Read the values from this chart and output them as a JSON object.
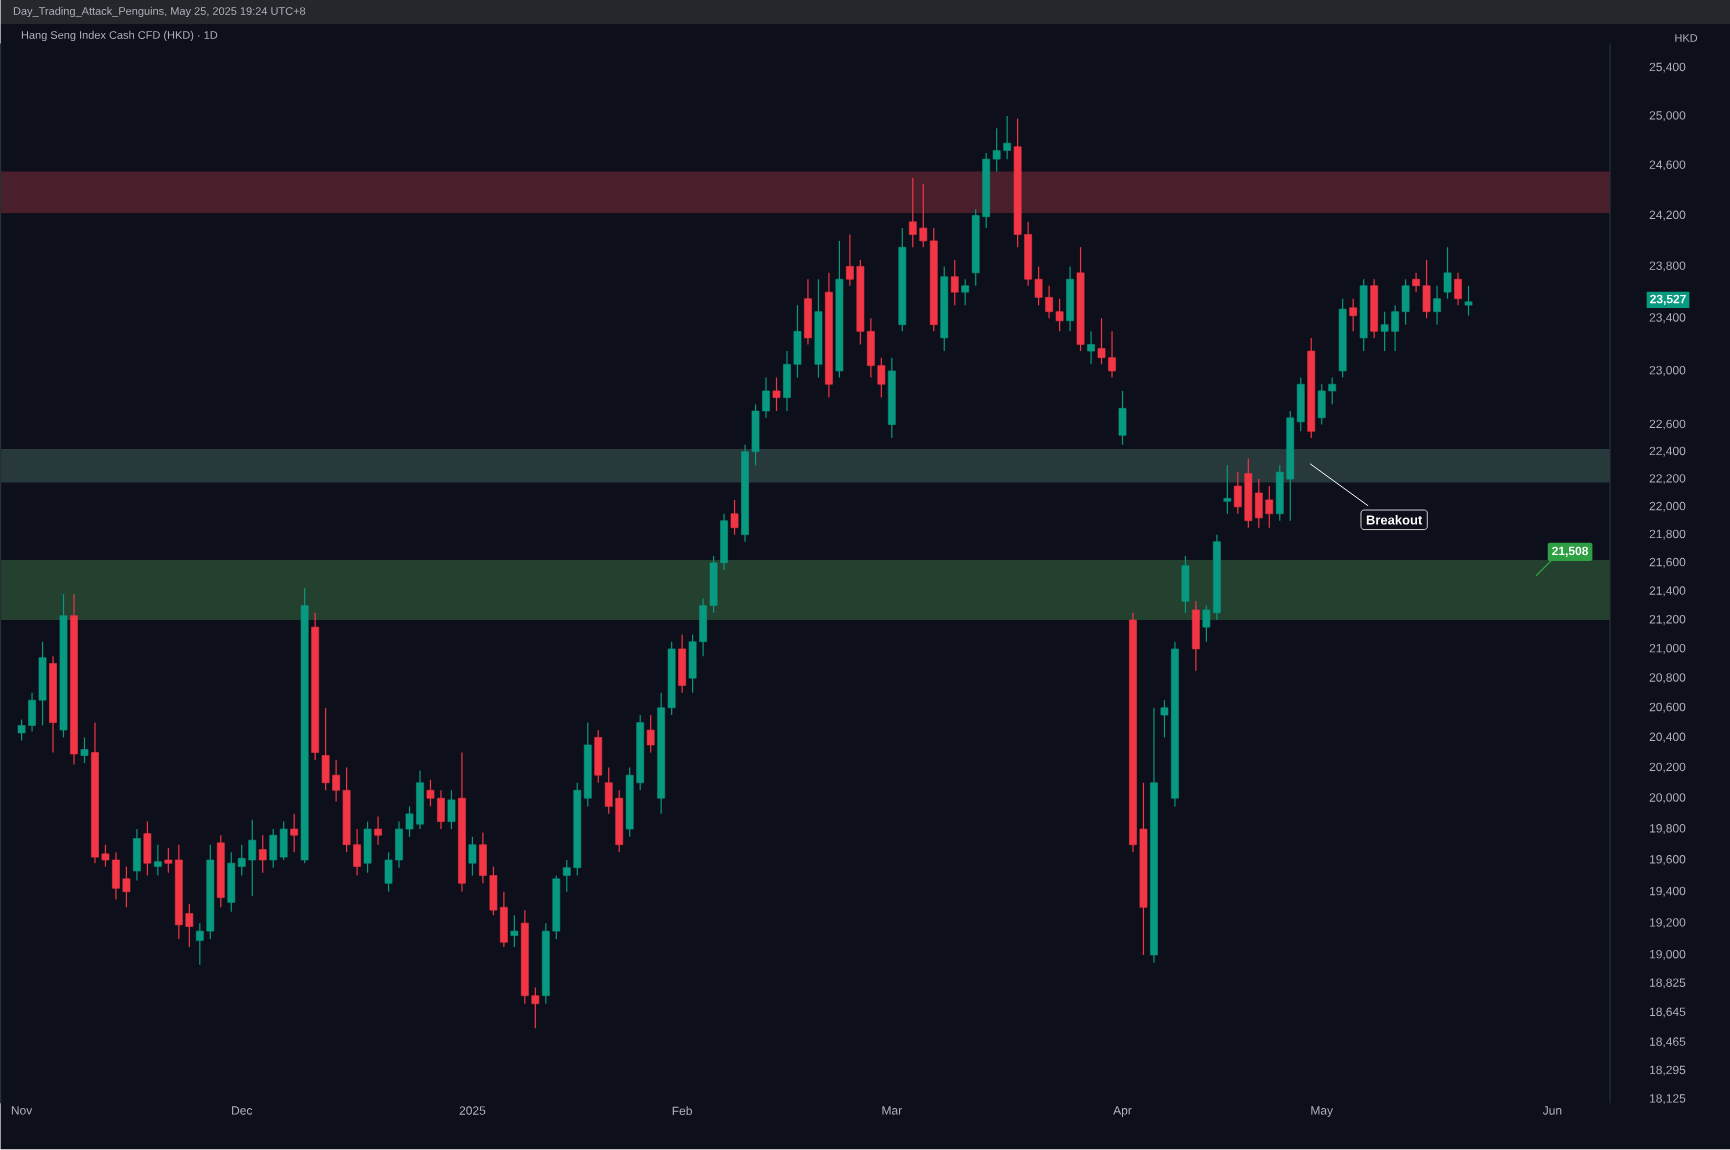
{
  "chart_data": {
    "type": "candlestick",
    "title": "Hang Seng Index Cash CFD (HKD) · 1D",
    "subtitle": "Day_Trading_Attack_Penguins, May 25, 2025 19:24 UTC+8",
    "ylabel": "HKD",
    "log": true,
    "ylim": [
      18100,
      25600
    ],
    "yticks": [
      {
        "value": 18125,
        "label": "18,125"
      },
      {
        "value": 18295,
        "label": "18,295"
      },
      {
        "value": 18465,
        "label": "18,465"
      },
      {
        "value": 18645,
        "label": "18,645"
      },
      {
        "value": 18825,
        "label": "18,825"
      },
      {
        "value": 19000,
        "label": "19,000"
      },
      {
        "value": 19200,
        "label": "19,200"
      },
      {
        "value": 19400,
        "label": "19,400"
      },
      {
        "value": 19600,
        "label": "19,600"
      },
      {
        "value": 19800,
        "label": "19,800"
      },
      {
        "value": 20000,
        "label": "20,000"
      },
      {
        "value": 20200,
        "label": "20,200"
      },
      {
        "value": 20400,
        "label": "20,400"
      },
      {
        "value": 20600,
        "label": "20,600"
      },
      {
        "value": 20800,
        "label": "20,800"
      },
      {
        "value": 21000,
        "label": "21,000"
      },
      {
        "value": 21200,
        "label": "21,200"
      },
      {
        "value": 21400,
        "label": "21,400"
      },
      {
        "value": 21600,
        "label": "21,600"
      },
      {
        "value": 21800,
        "label": "21,800"
      },
      {
        "value": 22000,
        "label": "22,000"
      },
      {
        "value": 22200,
        "label": "22,200"
      },
      {
        "value": 22400,
        "label": "22,400"
      },
      {
        "value": 22600,
        "label": "22,600"
      },
      {
        "value": 23000,
        "label": "23,000"
      },
      {
        "value": 23400,
        "label": "23,400"
      },
      {
        "value": 23800,
        "label": "23,800"
      },
      {
        "value": 24200,
        "label": "24,200"
      },
      {
        "value": 24600,
        "label": "24,600"
      },
      {
        "value": 25000,
        "label": "25,000"
      },
      {
        "value": 25400,
        "label": "25,400"
      }
    ],
    "categories": [
      "Nov",
      null,
      null,
      null,
      null,
      null,
      null,
      null,
      null,
      null,
      null,
      null,
      null,
      null,
      null,
      null,
      null,
      null,
      null,
      null,
      null,
      "Dec",
      null,
      null,
      null,
      null,
      null,
      null,
      null,
      null,
      null,
      null,
      null,
      null,
      null,
      null,
      null,
      null,
      null,
      null,
      null,
      null,
      null,
      "2025",
      null,
      null,
      null,
      null,
      null,
      null,
      null,
      null,
      null,
      null,
      null,
      null,
      null,
      null,
      null,
      null,
      null,
      null,
      null,
      "Feb",
      null,
      null,
      null,
      null,
      null,
      null,
      null,
      null,
      null,
      null,
      null,
      null,
      null,
      null,
      null,
      null,
      null,
      null,
      null,
      "Mar",
      null,
      null,
      null,
      null,
      null,
      null,
      null,
      null,
      null,
      null,
      null,
      null,
      null,
      null,
      null,
      null,
      null,
      null,
      null,
      null,
      null,
      "Apr",
      null,
      null,
      null,
      null,
      null,
      null,
      null,
      null,
      null,
      null,
      null,
      null,
      null,
      null,
      null,
      null,
      null,
      null,
      "May",
      null,
      null,
      null,
      null,
      null,
      null,
      null,
      null,
      null,
      null,
      null,
      null,
      null,
      null,
      null,
      null,
      null,
      null,
      null,
      null,
      null,
      "Jun",
      null,
      null,
      null,
      null,
      null
    ],
    "ohlc": [
      [
        20430,
        20520,
        20380,
        20480
      ],
      [
        20480,
        20700,
        20440,
        20650
      ],
      [
        20650,
        21050,
        20480,
        20940
      ],
      [
        20900,
        20950,
        20300,
        20500
      ],
      [
        20450,
        21380,
        20400,
        21230
      ],
      [
        21230,
        21380,
        20220,
        20290
      ],
      [
        20280,
        20400,
        20230,
        20320
      ],
      [
        20300,
        20500,
        19580,
        19620
      ],
      [
        19640,
        19700,
        19560,
        19600
      ],
      [
        19600,
        19650,
        19350,
        19420
      ],
      [
        19480,
        19560,
        19300,
        19400
      ],
      [
        19530,
        19800,
        19470,
        19740
      ],
      [
        19770,
        19850,
        19500,
        19580
      ],
      [
        19560,
        19700,
        19500,
        19590
      ],
      [
        19600,
        19680,
        19520,
        19580
      ],
      [
        19600,
        19700,
        19100,
        19190
      ],
      [
        19260,
        19320,
        19050,
        19180
      ],
      [
        19090,
        19200,
        18940,
        19150
      ],
      [
        19150,
        19700,
        19100,
        19600
      ],
      [
        19710,
        19760,
        19300,
        19360
      ],
      [
        19330,
        19650,
        19270,
        19580
      ],
      [
        19560,
        19700,
        19500,
        19610
      ],
      [
        19600,
        19860,
        19370,
        19730
      ],
      [
        19670,
        19760,
        19520,
        19600
      ],
      [
        19600,
        19800,
        19550,
        19760
      ],
      [
        19620,
        19850,
        19600,
        19800
      ],
      [
        19800,
        19900,
        19650,
        19760
      ],
      [
        19600,
        21420,
        19580,
        21300
      ],
      [
        21150,
        21250,
        20250,
        20300
      ],
      [
        20280,
        20600,
        20050,
        20100
      ],
      [
        20150,
        20250,
        19980,
        20050
      ],
      [
        20050,
        20200,
        19650,
        19700
      ],
      [
        19700,
        19800,
        19500,
        19560
      ],
      [
        19580,
        19850,
        19520,
        19800
      ],
      [
        19800,
        19880,
        19700,
        19760
      ],
      [
        19450,
        19650,
        19400,
        19600
      ],
      [
        19600,
        19850,
        19550,
        19800
      ],
      [
        19800,
        19950,
        19750,
        19900
      ],
      [
        19830,
        20180,
        19800,
        20100
      ],
      [
        20050,
        20120,
        19950,
        20000
      ],
      [
        20000,
        20050,
        19800,
        19850
      ],
      [
        19850,
        20050,
        19800,
        19990
      ],
      [
        20000,
        20300,
        19400,
        19450
      ],
      [
        19580,
        19750,
        19500,
        19700
      ],
      [
        19700,
        19780,
        19450,
        19500
      ],
      [
        19500,
        19560,
        19250,
        19280
      ],
      [
        19300,
        19400,
        19050,
        19080
      ],
      [
        19120,
        19250,
        19050,
        19150
      ],
      [
        19200,
        19280,
        18700,
        18750
      ],
      [
        18750,
        18800,
        18550,
        18700
      ],
      [
        18750,
        19200,
        18700,
        19150
      ],
      [
        19150,
        19500,
        19100,
        19480
      ],
      [
        19500,
        19600,
        19400,
        19550
      ],
      [
        19550,
        20100,
        19500,
        20050
      ],
      [
        20000,
        20500,
        19950,
        20350
      ],
      [
        20400,
        20450,
        20100,
        20150
      ],
      [
        20100,
        20200,
        19900,
        19950
      ],
      [
        20000,
        20050,
        19650,
        19700
      ],
      [
        19800,
        20200,
        19750,
        20150
      ],
      [
        20100,
        20550,
        20050,
        20500
      ],
      [
        20450,
        20550,
        20300,
        20350
      ],
      [
        20000,
        20700,
        19900,
        20600
      ],
      [
        20600,
        21050,
        20550,
        21000
      ],
      [
        21000,
        21100,
        20700,
        20750
      ],
      [
        20800,
        21100,
        20700,
        21050
      ],
      [
        21050,
        21350,
        20950,
        21300
      ],
      [
        21300,
        21650,
        21250,
        21600
      ],
      [
        21600,
        21950,
        21550,
        21900
      ],
      [
        21950,
        22050,
        21800,
        21850
      ],
      [
        21800,
        22450,
        21750,
        22400
      ],
      [
        22400,
        22750,
        22300,
        22700
      ],
      [
        22700,
        22950,
        22650,
        22850
      ],
      [
        22850,
        22950,
        22700,
        22800
      ],
      [
        22800,
        23150,
        22700,
        23050
      ],
      [
        23050,
        23500,
        22950,
        23300
      ],
      [
        23550,
        23700,
        23200,
        23250
      ],
      [
        23050,
        23700,
        22950,
        23450
      ],
      [
        23600,
        23750,
        22800,
        22900
      ],
      [
        23000,
        24000,
        22950,
        23700
      ],
      [
        23800,
        24050,
        23650,
        23700
      ],
      [
        23800,
        23850,
        23200,
        23300
      ],
      [
        23300,
        23400,
        22950,
        23040
      ],
      [
        23040,
        23100,
        22800,
        22900
      ],
      [
        22600,
        23100,
        22500,
        23000
      ],
      [
        23350,
        24100,
        23300,
        23950
      ],
      [
        24150,
        24500,
        23950,
        24050
      ],
      [
        24100,
        24450,
        23950,
        24000
      ],
      [
        24000,
        24100,
        23300,
        23350
      ],
      [
        23250,
        23800,
        23150,
        23720
      ],
      [
        23720,
        23850,
        23500,
        23600
      ],
      [
        23600,
        23700,
        23500,
        23650
      ],
      [
        23750,
        24250,
        23650,
        24200
      ],
      [
        24190,
        24700,
        24100,
        24650
      ],
      [
        24650,
        24900,
        24550,
        24720
      ],
      [
        24720,
        25000,
        24650,
        24780
      ],
      [
        24750,
        24980,
        23950,
        24050
      ],
      [
        24050,
        24150,
        23650,
        23700
      ],
      [
        23700,
        23800,
        23500,
        23560
      ],
      [
        23560,
        23650,
        23400,
        23450
      ],
      [
        23450,
        23550,
        23300,
        23380
      ],
      [
        23380,
        23800,
        23300,
        23700
      ],
      [
        23750,
        23950,
        23150,
        23200
      ],
      [
        23150,
        23300,
        23050,
        23200
      ],
      [
        23170,
        23400,
        23050,
        23100
      ],
      [
        23100,
        23300,
        22950,
        23000
      ],
      [
        22520,
        22850,
        22450,
        22720
      ],
      [
        21200,
        21250,
        19650,
        19700
      ],
      [
        19800,
        20100,
        19000,
        19300
      ],
      [
        19000,
        20600,
        18950,
        20100
      ],
      [
        20550,
        20650,
        20400,
        20600
      ],
      [
        20000,
        21050,
        19950,
        21000
      ],
      [
        21330,
        21650,
        21250,
        21580
      ],
      [
        21270,
        21330,
        20850,
        21000
      ],
      [
        21150,
        21300,
        21050,
        21270
      ],
      [
        21250,
        21800,
        21200,
        21750
      ],
      [
        22040,
        22300,
        21950,
        22060
      ],
      [
        22150,
        22250,
        21950,
        22000
      ],
      [
        22240,
        22350,
        21850,
        21900
      ],
      [
        22100,
        22200,
        21850,
        21920
      ],
      [
        22050,
        22150,
        21850,
        21950
      ],
      [
        21950,
        22300,
        21900,
        22250
      ],
      [
        22200,
        22700,
        21900,
        22650
      ],
      [
        22620,
        22950,
        22550,
        22900
      ],
      [
        23150,
        23250,
        22500,
        22550
      ],
      [
        22650,
        22900,
        22600,
        22850
      ],
      [
        22850,
        22950,
        22750,
        22900
      ],
      [
        23000,
        23550,
        22950,
        23470
      ],
      [
        23480,
        23550,
        23300,
        23420
      ],
      [
        23250,
        23700,
        23150,
        23650
      ],
      [
        23650,
        23700,
        23250,
        23300
      ],
      [
        23300,
        23450,
        23150,
        23350
      ],
      [
        23300,
        23500,
        23150,
        23450
      ],
      [
        23450,
        23700,
        23350,
        23650
      ],
      [
        23700,
        23750,
        23600,
        23650
      ],
      [
        23650,
        23850,
        23400,
        23450
      ],
      [
        23450,
        23650,
        23350,
        23550
      ],
      [
        23600,
        23950,
        23550,
        23750
      ],
      [
        23700,
        23750,
        23500,
        23550
      ],
      [
        23500,
        23650,
        23420,
        23527
      ],
      null,
      null,
      null,
      null,
      null,
      null,
      null,
      null,
      null,
      null,
      null,
      null,
      null
    ],
    "colors": [
      "#089981",
      "#089981",
      "#089981",
      "#f23645",
      "#089981",
      "#f23645",
      "#089981",
      "#f23645",
      "#f23645",
      "#f23645",
      "#f23645",
      "#089981",
      "#f23645",
      "#089981",
      "#f23645",
      "#f23645",
      "#f23645",
      "#089981",
      "#089981",
      "#f23645",
      "#089981",
      "#089981",
      "#089981",
      "#f23645",
      "#089981",
      "#089981",
      "#f23645",
      "#089981",
      "#f23645",
      "#f23645",
      "#f23645",
      "#f23645",
      "#f23645",
      "#089981",
      "#f23645",
      "#089981",
      "#089981",
      "#089981",
      "#089981",
      "#f23645",
      "#f23645",
      "#089981",
      "#f23645",
      "#089981",
      "#f23645",
      "#f23645",
      "#f23645",
      "#089981",
      "#f23645",
      "#f23645",
      "#089981",
      "#089981",
      "#089981",
      "#089981",
      "#089981",
      "#f23645",
      "#f23645",
      "#f23645",
      "#089981",
      "#089981",
      "#f23645",
      "#089981",
      "#089981",
      "#f23645",
      "#089981",
      "#089981",
      "#089981",
      "#089981",
      "#f23645",
      "#089981",
      "#089981",
      "#089981",
      "#f23645",
      "#089981",
      "#089981",
      "#f23645",
      "#089981",
      "#f23645",
      "#089981",
      "#f23645",
      "#f23645",
      "#f23645",
      "#f23645",
      "#089981",
      "#089981",
      "#f23645",
      "#f23645",
      "#f23645",
      "#089981",
      "#f23645",
      "#089981",
      "#089981",
      "#089981",
      "#089981",
      "#089981",
      "#f23645",
      "#f23645",
      "#f23645",
      "#f23645",
      "#f23645",
      "#089981",
      "#f23645",
      "#089981",
      "#f23645",
      "#f23645",
      "#089981",
      "#f23645",
      "#f23645",
      "#089981",
      "#089981",
      "#089981",
      "#089981",
      "#f23645",
      "#089981",
      "#089981",
      "#089981",
      "#f23645",
      "#f23645",
      "#f23645",
      "#f23645",
      "#089981",
      "#089981",
      "#089981",
      "#f23645",
      "#089981",
      "#089981",
      "#089981",
      "#f23645",
      "#089981",
      "#f23645",
      "#089981",
      "#089981",
      "#089981",
      "#f23645",
      "#f23645",
      "#089981",
      "#089981",
      "#f23645",
      "#089981",
      null,
      null,
      null,
      null,
      null,
      null,
      null,
      null,
      null,
      null,
      null,
      null,
      null
    ],
    "bands": [
      {
        "axis": "y",
        "from": 24220,
        "to": 24550,
        "color": "#4a1f2c"
      },
      {
        "axis": "y",
        "from": 22175,
        "to": 22420,
        "color": "#27393a"
      },
      {
        "axis": "y",
        "from": 21200,
        "to": 21620,
        "color": "#24402f"
      }
    ],
    "annotations": [
      "Breakout",
      "21,508",
      "23,527"
    ]
  }
}
